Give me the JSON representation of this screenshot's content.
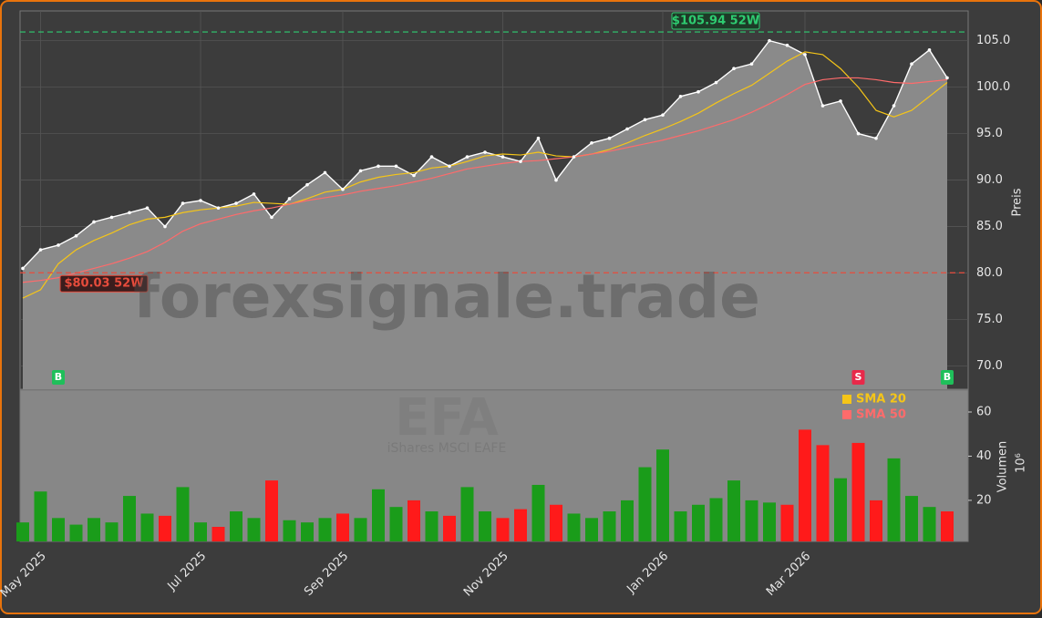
{
  "chart_data": {
    "type": "line",
    "ylabel": "Preis",
    "watermark": "forexsignale.trade",
    "symbol": "EFA",
    "symbol_name": "iShares MSCI EAFE",
    "categories": [
      null,
      "May 2025",
      null,
      null,
      null,
      null,
      null,
      null,
      null,
      null,
      "Jul 2025",
      null,
      null,
      null,
      null,
      null,
      null,
      null,
      "Sep 2025",
      null,
      null,
      null,
      null,
      null,
      null,
      null,
      null,
      "Nov 2025",
      null,
      null,
      null,
      null,
      null,
      null,
      null,
      null,
      "Jan 2026",
      null,
      null,
      null,
      null,
      null,
      null,
      null,
      "Mar 2026",
      null,
      null,
      null,
      null,
      null,
      null,
      null,
      null
    ],
    "series": [
      {
        "color": "#ffffff",
        "area_color": "#8a8a8a",
        "values": [
          80.5,
          82.5,
          83,
          84,
          85.5,
          86,
          86.5,
          87,
          85,
          87.5,
          87.8,
          87,
          87.5,
          88.5,
          86,
          88,
          89.5,
          90.8,
          89,
          91,
          91.5,
          91.5,
          90.5,
          92.5,
          91.5,
          92.5,
          93,
          92.5,
          92,
          94.5,
          90,
          92.5,
          94,
          94.5,
          95.5,
          96.5,
          97,
          99,
          99.5,
          100.5,
          102,
          102.5,
          105,
          104.5,
          103.5,
          98,
          98.5,
          95,
          94.5,
          98,
          102.5,
          104,
          101
        ]
      },
      {
        "name": "SMA 20",
        "color": "#f5c518",
        "values": [
          77.3,
          78.2,
          81,
          82.5,
          83.5,
          84.3,
          85.2,
          85.8,
          86,
          86.5,
          86.8,
          87,
          87.2,
          87.6,
          87.5,
          87.4,
          88,
          88.7,
          89,
          89.8,
          90.3,
          90.6,
          90.8,
          91.3,
          91.5,
          92,
          92.6,
          92.8,
          92.7,
          93,
          92.6,
          92.5,
          92.8,
          93.3,
          94,
          94.8,
          95.5,
          96.3,
          97.2,
          98.3,
          99.3,
          100.2,
          101.5,
          102.8,
          103.8,
          103.5,
          102,
          100,
          97.5,
          96.8,
          97.5,
          99,
          100.5
        ]
      },
      {
        "name": "SMA 50",
        "color": "#ff6b6b",
        "values": [
          79,
          79.2,
          79.5,
          80,
          80.5,
          81,
          81.6,
          82.3,
          83.3,
          84.5,
          85.3,
          85.8,
          86.3,
          86.7,
          87,
          87.4,
          87.8,
          88.1,
          88.4,
          88.8,
          89.1,
          89.4,
          89.8,
          90.2,
          90.7,
          91.2,
          91.5,
          91.8,
          92,
          92.1,
          92.3,
          92.5,
          92.8,
          93.1,
          93.5,
          93.9,
          94.3,
          94.8,
          95.3,
          95.9,
          96.5,
          97.3,
          98.2,
          99.2,
          100.3,
          100.8,
          101,
          101,
          100.8,
          100.5,
          100.4,
          100.6,
          100.8
        ]
      }
    ],
    "signals": [
      null,
      null,
      "B",
      null,
      null,
      null,
      null,
      null,
      null,
      null,
      null,
      null,
      null,
      null,
      null,
      null,
      null,
      null,
      null,
      null,
      null,
      null,
      null,
      null,
      null,
      null,
      null,
      null,
      null,
      null,
      null,
      null,
      null,
      null,
      null,
      null,
      null,
      null,
      null,
      null,
      null,
      null,
      null,
      null,
      null,
      null,
      null,
      "S",
      null,
      null,
      null,
      null,
      "B"
    ],
    "signal_colors": {
      "B": "#1fbf5a",
      "S": "#e8294a"
    },
    "hlines": [
      {
        "value": 105.94,
        "label": "$105.94 52W",
        "color": "#2ecc71"
      },
      {
        "value": 80.03,
        "label": "$80.03 52W",
        "color": "#e74c3c"
      }
    ],
    "ylim": [
      67.5,
      108.2
    ],
    "yticks": [
      {
        "value": 70,
        "label": "70.0"
      },
      {
        "value": 75,
        "label": "75.0"
      },
      {
        "value": 80,
        "label": "80.0"
      },
      {
        "value": 85,
        "label": "85.0"
      },
      {
        "value": 90,
        "label": "90.0"
      },
      {
        "value": 95,
        "label": "95.0"
      },
      {
        "value": 100,
        "label": "100.0"
      },
      {
        "value": 105,
        "label": "105.0"
      }
    ],
    "grid": true,
    "volume": {
      "type": "bar",
      "ylabel": "Volumen",
      "unit": "10⁶",
      "up_color": "#1a9c1a",
      "down_color": "#ff1a1a",
      "values": [
        10,
        24,
        12,
        9,
        12,
        10,
        22,
        14,
        13,
        26,
        10,
        8,
        15,
        12,
        29,
        11,
        10,
        12,
        14,
        12,
        25,
        17,
        20,
        15,
        13,
        26,
        15,
        12,
        16,
        27,
        18,
        14,
        12,
        15,
        20,
        35,
        43,
        15,
        18,
        21,
        29,
        20,
        19,
        18,
        52,
        45,
        30,
        46,
        20,
        39,
        22,
        17,
        15
      ],
      "ylim": [
        1.4,
        69.9
      ],
      "yticks": [
        20,
        40,
        60
      ]
    }
  }
}
